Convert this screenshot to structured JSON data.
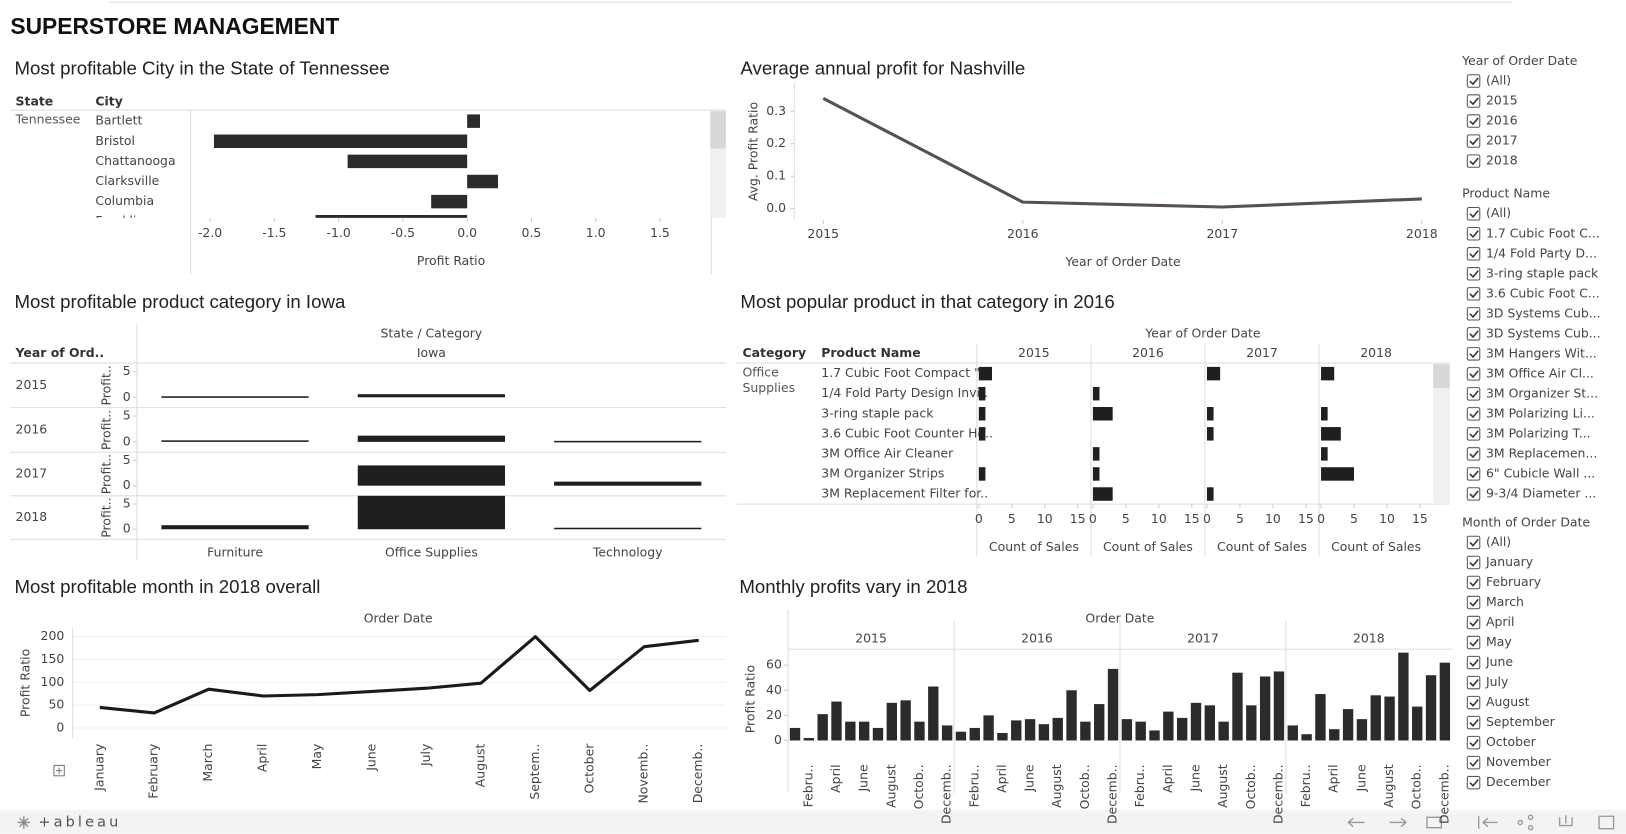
{
  "header": {
    "title": "SUPERSTORE MANAGEMENT"
  },
  "chart_data": [
    {
      "type": "hbar",
      "title": "Most profitable City in the State of Tennessee",
      "row_headers": [
        "State",
        "City"
      ],
      "group": "Tennessee",
      "categories": [
        "Bartlett",
        "Bristol",
        "Chattanooga",
        "Clarksville",
        "Columbia",
        "Franklin"
      ],
      "values": [
        0.1,
        -1.97,
        -0.93,
        0.24,
        -0.28,
        -1.18
      ],
      "color": "#2b2b2b",
      "xlabel": "Profit Ratio",
      "xlim": [
        -2.15,
        1.9
      ],
      "xticks": [
        {
          "value": -2,
          "label": "-2.0"
        },
        -1.5,
        {
          "value": -1,
          "label": "-1.0"
        },
        -0.5,
        {
          "value": 0,
          "label": "0.0"
        },
        0.5,
        {
          "value": 1,
          "label": "1.0"
        },
        1.5
      ]
    },
    {
      "type": "line",
      "title": "Average annual profit for Nashville",
      "x": [
        2015,
        2016,
        2017,
        2018
      ],
      "values": [
        0.34,
        0.02,
        0.005,
        0.03
      ],
      "color": "#585052",
      "xlim": [
        2014.72,
        2018.15
      ],
      "xticks": [
        2015,
        2016,
        2017,
        2018
      ],
      "xlabel": "Year of Order Date",
      "ylabel": "Avg. Profit Ratio",
      "ylim": [
        -0.035,
        0.387
      ],
      "yticks": [
        {
          "value": 0,
          "label": "0.0"
        },
        0.1,
        0.2,
        0.3
      ]
    },
    {
      "type": "bar",
      "title": "Most profitable product category in Iowa",
      "column_header": "State / Category",
      "group": "Iowa",
      "row_header": "Year of Ord..",
      "ylabel": "Profit..",
      "categories": [
        "Furniture",
        "Office Supplies",
        "Technology"
      ],
      "series": [
        {
          "name": "2015",
          "values": [
            0.2,
            0.6,
            null
          ]
        },
        {
          "name": "2016",
          "values": [
            0.3,
            1.2,
            0.2
          ]
        },
        {
          "name": "2017",
          "values": [
            null,
            4,
            0.8
          ]
        },
        {
          "name": "2018",
          "values": [
            0.8,
            6.6,
            0.3
          ]
        }
      ],
      "color": "#1f1f1f",
      "ylim": [
        -2,
        6.6
      ],
      "yticks": [
        0,
        5
      ]
    },
    {
      "type": "hbar",
      "title": "Most popular product in that category in 2016",
      "column_header": "Year of Order Date",
      "row_headers": [
        "Category",
        "Product Name"
      ],
      "group": "Office Supplies",
      "categories": [
        "1.7 Cubic Foot Compact \"..",
        "1/4 Fold Party Design Invi..",
        "3-ring staple pack",
        "3.6 Cubic Foot Counter He..",
        "3M Office Air Cleaner",
        "3M Organizer Strips",
        "3M Replacement Filter for.."
      ],
      "series": [
        {
          "name": "2015",
          "values": [
            2,
            1,
            1,
            1,
            null,
            1,
            null
          ]
        },
        {
          "name": "2016",
          "values": [
            null,
            1,
            3,
            null,
            1,
            1,
            3
          ]
        },
        {
          "name": "2017",
          "values": [
            2,
            null,
            1,
            1,
            null,
            null,
            1
          ]
        },
        {
          "name": "2018",
          "values": [
            2,
            null,
            1,
            3,
            1,
            5,
            null
          ]
        }
      ],
      "color": "#1f1f1f",
      "xlabel": "Count of Sales",
      "xlim": [
        -0.3,
        17
      ],
      "xticks": [
        0,
        5,
        10,
        15
      ]
    },
    {
      "type": "line",
      "title": "Most profitable month in 2018 overall",
      "column_header": "Order Date",
      "ylabel": "Profit Ratio",
      "categories": [
        "January",
        "February",
        "March",
        "April",
        "May",
        "June",
        "July",
        "August",
        "Septem..",
        "October",
        "Novemb..",
        "Decemb.."
      ],
      "values": [
        45,
        33,
        85,
        70,
        73,
        80,
        87,
        98,
        200,
        82,
        178,
        192
      ],
      "color": "#1a1a1a",
      "ylim": [
        -23,
        220
      ],
      "yticks": [
        0,
        50,
        100,
        150,
        200
      ],
      "grid": true
    },
    {
      "type": "bar",
      "title": "Monthly profits vary in 2018",
      "column_header": "Order Date",
      "ylabel": "Profit Ratio",
      "categories": [
        null,
        "Febru..",
        null,
        "April",
        null,
        "June",
        null,
        "August",
        null,
        "Octob..",
        null,
        "Decemb.."
      ],
      "series": [
        {
          "name": "2015",
          "values": [
            10,
            2,
            21,
            31,
            15,
            15,
            10,
            30,
            32,
            15,
            43,
            12
          ]
        },
        {
          "name": "2016",
          "values": [
            7,
            10,
            20,
            6,
            16,
            17,
            13,
            18,
            40,
            15,
            29,
            57
          ]
        },
        {
          "name": "2017",
          "values": [
            17,
            15,
            8,
            23,
            18,
            30,
            28,
            15,
            54,
            28,
            51,
            55
          ]
        },
        {
          "name": "2018",
          "values": [
            12,
            5,
            37,
            9,
            25,
            17,
            36,
            35,
            70,
            27,
            52,
            62
          ]
        }
      ],
      "color": "#2b2b2b",
      "ylim": [
        -5,
        71
      ],
      "yticks": [
        0,
        20,
        40,
        60
      ]
    }
  ],
  "filters": [
    {
      "title": "Year of Order Date",
      "items": [
        "(All)",
        "2015",
        "2016",
        "2017",
        "2018"
      ]
    },
    {
      "title": "Product Name",
      "items": [
        "(All)",
        "1.7 Cubic Foot C...",
        "1/4 Fold Party D...",
        "3-ring staple pack",
        "3.6 Cubic Foot C...",
        "3D Systems Cub...",
        "3D Systems Cub...",
        "3M Hangers Wit...",
        "3M Office Air Cl...",
        "3M Organizer St...",
        "3M Polarizing Li...",
        "3M Polarizing T...",
        "3M Replacemen...",
        "6\" Cubicle Wall ...",
        "9-3/4 Diameter ..."
      ]
    },
    {
      "title": "Month of Order Date",
      "items": [
        "(All)",
        "January",
        "February",
        "March",
        "April",
        "May",
        "June",
        "July",
        "August",
        "September",
        "October",
        "November",
        "December"
      ]
    }
  ],
  "footer": {
    "logo": "+ableau"
  }
}
